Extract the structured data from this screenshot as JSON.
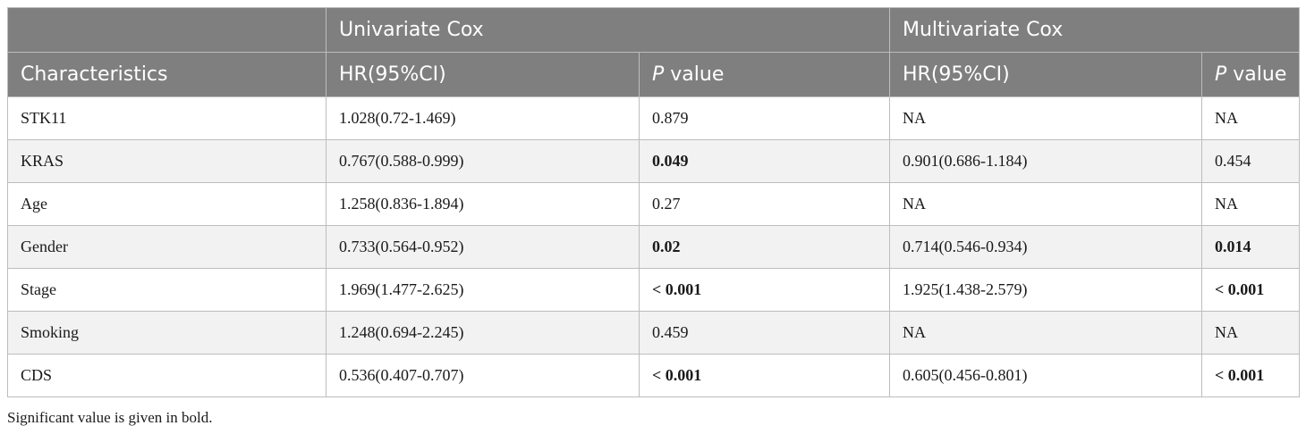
{
  "table": {
    "group_headers": [
      "",
      "Univariate Cox",
      "Multivariate Cox"
    ],
    "columns": {
      "characteristics": "Characteristics",
      "uni_hr": "HR(95%CI)",
      "uni_p_italic": "P",
      "uni_p_rest": " value",
      "multi_hr": "HR(95%CI)",
      "multi_p_italic": "P",
      "multi_p_rest": " value"
    },
    "rows": [
      {
        "name": "STK11",
        "uni_hr": "1.028(0.72-1.469)",
        "uni_p": "0.879",
        "uni_p_bold": false,
        "multi_hr": "NA",
        "multi_p": "NA",
        "multi_p_bold": false
      },
      {
        "name": "KRAS",
        "uni_hr": "0.767(0.588-0.999)",
        "uni_p": "0.049",
        "uni_p_bold": true,
        "multi_hr": "0.901(0.686-1.184)",
        "multi_p": "0.454",
        "multi_p_bold": false
      },
      {
        "name": "Age",
        "uni_hr": "1.258(0.836-1.894)",
        "uni_p": "0.27",
        "uni_p_bold": false,
        "multi_hr": "NA",
        "multi_p": "NA",
        "multi_p_bold": false
      },
      {
        "name": "Gender",
        "uni_hr": "0.733(0.564-0.952)",
        "uni_p": "0.02",
        "uni_p_bold": true,
        "multi_hr": "0.714(0.546-0.934)",
        "multi_p": "0.014",
        "multi_p_bold": true
      },
      {
        "name": "Stage",
        "uni_hr": "1.969(1.477-2.625)",
        "uni_p": "< 0.001",
        "uni_p_bold": true,
        "multi_hr": "1.925(1.438-2.579)",
        "multi_p": "< 0.001",
        "multi_p_bold": true
      },
      {
        "name": "Smoking",
        "uni_hr": "1.248(0.694-2.245)",
        "uni_p": "0.459",
        "uni_p_bold": false,
        "multi_hr": "NA",
        "multi_p": "NA",
        "multi_p_bold": false
      },
      {
        "name": "CDS",
        "uni_hr": "0.536(0.407-0.707)",
        "uni_p": "< 0.001",
        "uni_p_bold": true,
        "multi_hr": "0.605(0.456-0.801)",
        "multi_p": "< 0.001",
        "multi_p_bold": true
      }
    ]
  },
  "footnote": "Significant value is given in bold.",
  "colors": {
    "header_bg": "#7f7f7f",
    "header_text": "#ffffff",
    "row_alt_bg": "#f2f2f2",
    "border": "#bdbdbd"
  }
}
